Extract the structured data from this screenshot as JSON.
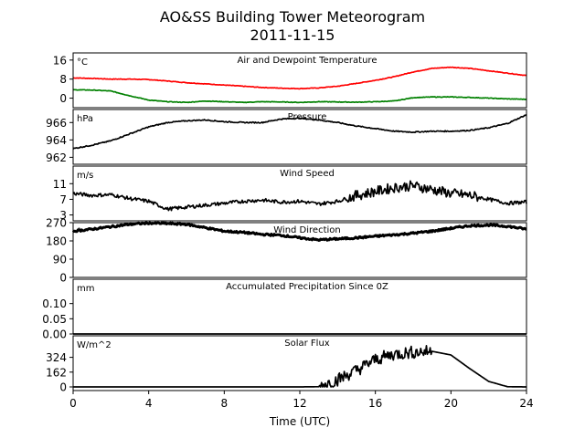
{
  "figure": {
    "title": "AO&SS Building Tower Meteorogram",
    "subtitle": "2011-11-15",
    "xlabel": "Time (UTC)"
  },
  "chart_data": [
    {
      "type": "line",
      "key": "temp",
      "title": "Air and Dewpoint Temperature",
      "unit": "°C",
      "xlim": [
        0,
        24
      ],
      "ylim": [
        -4,
        19
      ],
      "yticks": [
        0,
        8,
        16
      ],
      "series": [
        {
          "color": "#ff0000",
          "x": [
            0,
            1,
            2,
            3,
            4,
            5,
            6,
            7,
            8,
            9,
            10,
            11,
            12,
            13,
            14,
            15,
            16,
            17,
            18,
            19,
            20,
            21,
            22,
            23,
            24
          ],
          "y": [
            8.5,
            8.3,
            8,
            8,
            7.8,
            7.2,
            6.5,
            6,
            5.5,
            5,
            4.5,
            4.2,
            4,
            4.3,
            5,
            6.2,
            7.5,
            9,
            11,
            12.5,
            13,
            12.5,
            11.5,
            10.5,
            9.5
          ]
        },
        {
          "color": "#008000",
          "x": [
            0,
            1,
            2,
            3,
            4,
            5,
            6,
            7,
            8,
            9,
            10,
            11,
            12,
            13,
            14,
            15,
            16,
            17,
            18,
            19,
            20,
            21,
            22,
            23,
            24
          ],
          "y": [
            3.5,
            3.4,
            3,
            1,
            -0.8,
            -1.5,
            -1.8,
            -1.2,
            -1.5,
            -1.8,
            -1.5,
            -1.6,
            -1.8,
            -1.5,
            -1.6,
            -1.7,
            -1.5,
            -1.2,
            0.2,
            0.5,
            0.5,
            0.3,
            0,
            -0.3,
            -0.5
          ]
        }
      ]
    },
    {
      "type": "line",
      "key": "pressure",
      "title": "Pressure",
      "unit": "hPa",
      "xlim": [
        0,
        24
      ],
      "ylim": [
        961.2,
        967.5
      ],
      "yticks": [
        962,
        964,
        966
      ],
      "series": [
        {
          "color": "#000000",
          "x": [
            0,
            1,
            2,
            3,
            4,
            5,
            6,
            7,
            8,
            9,
            10,
            11,
            12,
            13,
            14,
            15,
            16,
            17,
            18,
            19,
            20,
            21,
            22,
            23,
            24
          ],
          "y": [
            963,
            963.4,
            963.9,
            964.7,
            965.5,
            966,
            966.2,
            966.3,
            966.1,
            966,
            966,
            966.4,
            966.5,
            966.3,
            966,
            965.6,
            965.3,
            965,
            964.9,
            965,
            965,
            965.1,
            965.4,
            965.9,
            966.9
          ]
        }
      ]
    },
    {
      "type": "line",
      "key": "wind_speed",
      "title": "Wind Speed",
      "unit": "m/s",
      "xlim": [
        0,
        24
      ],
      "ylim": [
        1.5,
        15.5
      ],
      "yticks": [
        3,
        7,
        11
      ],
      "series": [
        {
          "color": "#000000",
          "x": [
            0,
            1,
            2,
            3,
            4,
            5,
            6,
            7,
            8,
            9,
            10,
            11,
            12,
            13,
            14,
            15,
            16,
            17,
            18,
            19,
            20,
            21,
            22,
            23,
            24
          ],
          "y": [
            8.5,
            8,
            8.2,
            7.2,
            6.5,
            4.5,
            5,
            5.5,
            6,
            6.5,
            6.8,
            6.3,
            6.5,
            5.8,
            6.5,
            8,
            9,
            10,
            10.5,
            9.5,
            8.5,
            8,
            7,
            6,
            6.3
          ]
        }
      ]
    },
    {
      "type": "line",
      "key": "wind_dir",
      "title": "Wind Direction",
      "unit": "°",
      "xlim": [
        0,
        24
      ],
      "ylim": [
        0,
        270
      ],
      "yticks": [
        0,
        90,
        180,
        270
      ],
      "series": [
        {
          "color": "#000000",
          "x": [
            0,
            1,
            2,
            3,
            4,
            5,
            6,
            7,
            8,
            9,
            10,
            11,
            12,
            13,
            14,
            15,
            16,
            17,
            18,
            19,
            20,
            21,
            22,
            23,
            24
          ],
          "y": [
            228,
            238,
            250,
            262,
            268,
            266,
            262,
            245,
            228,
            222,
            212,
            208,
            195,
            185,
            190,
            195,
            203,
            210,
            218,
            228,
            242,
            255,
            258,
            252,
            238
          ]
        }
      ]
    },
    {
      "type": "line",
      "key": "precip",
      "title": "Accumulated Precipitation Since 0Z",
      "unit": "mm",
      "xlim": [
        0,
        24
      ],
      "ylim": [
        0,
        0.18
      ],
      "yticks": [
        0.0,
        0.05,
        0.1
      ],
      "ytick_labels": [
        "0.00",
        "0.05",
        "0.10"
      ],
      "series": [
        {
          "color": "#000000",
          "x": [
            0,
            24
          ],
          "y": [
            0,
            0
          ]
        }
      ]
    },
    {
      "type": "line",
      "key": "solar",
      "title": "Solar Flux",
      "unit": "W/m^2",
      "xlim": [
        0,
        24
      ],
      "ylim": [
        -40,
        560
      ],
      "yticks": [
        0,
        162,
        324
      ],
      "series": [
        {
          "color": "#000000",
          "x": [
            0,
            1,
            2,
            3,
            4,
            5,
            6,
            7,
            8,
            9,
            10,
            11,
            12,
            13,
            14,
            15,
            16,
            17,
            18,
            19,
            20,
            21,
            22,
            23,
            24
          ],
          "y": [
            0,
            0,
            0,
            0,
            0,
            0,
            0,
            0,
            0,
            0,
            0,
            0,
            0,
            2,
            80,
            180,
            300,
            360,
            380,
            390,
            350,
            200,
            60,
            2,
            0
          ]
        }
      ]
    }
  ],
  "xticks": [
    0,
    4,
    8,
    12,
    16,
    20,
    24
  ]
}
